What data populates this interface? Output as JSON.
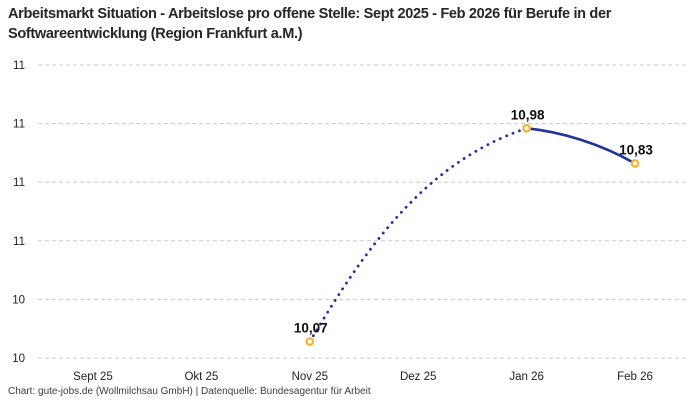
{
  "title": "Arbeitsmarkt Situation - Arbeitslose pro offene Stelle: Sept 2025 - Feb 2026 für Berufe in der Softwareentwicklung (Region Frankfurt a.M.)",
  "footer": "Chart: gute-jobs.de (Wollmilchsau GmbH) | Datenquelle: Bundesagentur für Arbeit",
  "chart_data": {
    "type": "line",
    "title": "Arbeitsmarkt Situation - Arbeitslose pro offene Stelle: Sept 2025 - Feb 2026 für Berufe in der Softwareentwicklung (Region Frankfurt a.M.)",
    "categories": [
      "Sept 25",
      "Okt 25",
      "Nov 25",
      "Dez 25",
      "Jan 26",
      "Feb 26"
    ],
    "series": [
      {
        "name": "Arbeitslose pro offene Stelle",
        "points": [
          {
            "category": "Nov 25",
            "value": 10.07,
            "label": "10,07"
          },
          {
            "category": "Jan 26",
            "value": 10.98,
            "label": "10,98"
          },
          {
            "category": "Feb 26",
            "value": 10.83,
            "label": "10,83"
          }
        ],
        "segments": [
          {
            "from": "Nov 25",
            "to": "Jan 26",
            "style": "dotted"
          },
          {
            "from": "Jan 26",
            "to": "Feb 26",
            "style": "solid"
          }
        ]
      }
    ],
    "ylim": [
      10.0,
      11.25
    ],
    "yticks": [
      {
        "value": 10.0,
        "label": "10"
      },
      {
        "value": 10.25,
        "label": "10"
      },
      {
        "value": 10.5,
        "label": "11"
      },
      {
        "value": 10.75,
        "label": "11"
      },
      {
        "value": 11.0,
        "label": "11"
      },
      {
        "value": 11.25,
        "label": "11"
      }
    ],
    "xlabel": "",
    "ylabel": "",
    "grid": "horizontal-dashed",
    "legend": "none",
    "decimal_separator": ",",
    "colors": {
      "line": "#1f339c",
      "marker_ring": "#f7b32b",
      "marker_fill": "#ffffff",
      "gridline": "#cbcbcb",
      "tick_text": "#222222",
      "title_text": "#262626",
      "footer_text": "#3d3d3d"
    }
  }
}
